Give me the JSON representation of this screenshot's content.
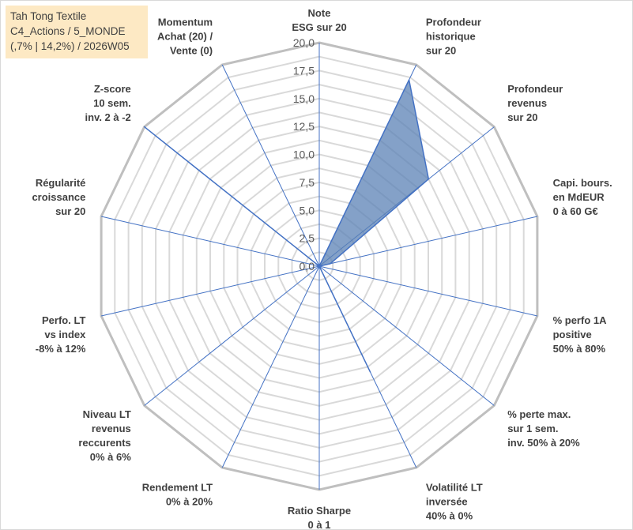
{
  "header": {
    "line1": "Tah Tong Textile",
    "line2": "C4_Actions / 5_MONDE",
    "line3": "(,7% | 14,2%) / 2026W05"
  },
  "colors": {
    "fill": "#5b82b5",
    "stroke": "#4472c4",
    "grid": "#bfbfbf",
    "spoke": "#4472c4",
    "title_bg": "#fde9c4"
  },
  "chart_data": {
    "type": "radar",
    "title": "",
    "rmin": 0,
    "rmax": 20,
    "grid_step": 1.25,
    "tick_labels": [
      "0,0",
      "2,5",
      "5,0",
      "7,5",
      "10,0",
      "12,5",
      "15,0",
      "17,5",
      "20,0"
    ],
    "axes": [
      {
        "label": [
          "Note",
          "ESG sur 20"
        ],
        "value": 0
      },
      {
        "label": [
          "Profondeur",
          "historique",
          "sur 20"
        ],
        "value": 18.5
      },
      {
        "label": [
          "Profondeur",
          "revenus",
          "sur 20"
        ],
        "value": 12.5
      },
      {
        "label": [
          "Capi. bours.",
          "en MdEUR",
          "0 à 60 G€"
        ],
        "value": 1
      },
      {
        "label": [
          "% perfo 1A",
          "positive",
          "50% à 80%"
        ],
        "value": 0
      },
      {
        "label": [
          "% perte max.",
          "sur 1 sem.",
          "inv. 50% à 20%"
        ],
        "value": 0
      },
      {
        "label": [
          "Volatilité LT",
          "inversée",
          "40% à 0%"
        ],
        "value": 10.5
      },
      {
        "label": [
          "Ratio Sharpe",
          "0 à 1"
        ],
        "value": 0
      },
      {
        "label": [
          "Rendement LT",
          "0% à 20%"
        ],
        "value": 0
      },
      {
        "label": [
          "Niveau LT",
          "revenus",
          "reccurents",
          "0% à 6%"
        ],
        "value": 0
      },
      {
        "label": [
          "Perfo. LT",
          "vs index",
          "-8% à 12%"
        ],
        "value": 0
      },
      {
        "label": [
          "Régularité",
          "croissance",
          "sur 20"
        ],
        "value": 0
      },
      {
        "label": [
          "Z-score",
          "10 sem.",
          "inv. 2 à -2"
        ],
        "value": 20
      },
      {
        "label": [
          "Momentum",
          "Achat (20) /",
          "Vente (0)"
        ],
        "value": 0
      }
    ]
  }
}
